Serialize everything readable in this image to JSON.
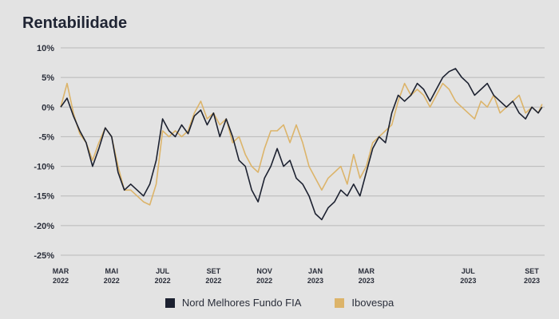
{
  "title": "Rentabilidade",
  "chart_data": {
    "type": "line",
    "title": "Rentabilidade",
    "ylim": [
      -25,
      10
    ],
    "y_ticks": [
      "10%",
      "5%",
      "0%",
      "-5%",
      "-10%",
      "-15%",
      "-20%",
      "-25%"
    ],
    "x_ticks": [
      {
        "month": "MAR",
        "year": "2022"
      },
      {
        "month": "MAI",
        "year": "2022"
      },
      {
        "month": "JUL",
        "year": "2022"
      },
      {
        "month": "SET",
        "year": "2022"
      },
      {
        "month": "NOV",
        "year": "2022"
      },
      {
        "month": "JAN",
        "year": "2023"
      },
      {
        "month": "MAR",
        "year": "2023"
      },
      {
        "month": "JUL",
        "year": "2023"
      },
      {
        "month": "SET",
        "year": "2023"
      }
    ],
    "x_tick_positions": [
      0,
      2,
      4,
      6,
      8,
      10,
      12,
      16,
      18.5
    ],
    "x_range": [
      0,
      19
    ],
    "grid": true,
    "legend_position": "bottom",
    "series": [
      {
        "name": "Nord Melhores Fundo FIA",
        "color": "#1c2130",
        "x": [
          0,
          0.25,
          0.5,
          0.75,
          1,
          1.25,
          1.5,
          1.75,
          2,
          2.25,
          2.5,
          2.75,
          3,
          3.25,
          3.5,
          3.75,
          4,
          4.25,
          4.5,
          4.75,
          5,
          5.25,
          5.5,
          5.75,
          6,
          6.25,
          6.5,
          6.75,
          7,
          7.25,
          7.5,
          7.75,
          8,
          8.25,
          8.5,
          8.75,
          9,
          9.25,
          9.5,
          9.75,
          10,
          10.25,
          10.5,
          10.75,
          11,
          11.25,
          11.5,
          11.75,
          12,
          12.25,
          12.5,
          12.75,
          13,
          13.25,
          13.5,
          13.75,
          14,
          14.25,
          14.5,
          14.75,
          15,
          15.25,
          15.5,
          15.75,
          16,
          16.25,
          16.5,
          16.75,
          17,
          17.25,
          17.5,
          17.75,
          18,
          18.25,
          18.5,
          18.75,
          18.9
        ],
        "values": [
          0,
          1.5,
          -1.5,
          -4,
          -6,
          -10,
          -7,
          -3.5,
          -5,
          -11,
          -14,
          -13,
          -14,
          -15,
          -13,
          -9,
          -2,
          -4,
          -5,
          -3,
          -4.5,
          -1.5,
          -0.5,
          -3,
          -1,
          -5,
          -2,
          -5,
          -9,
          -10,
          -14,
          -16,
          -12,
          -10,
          -7,
          -10,
          -9,
          -12,
          -13,
          -15,
          -18,
          -19,
          -17,
          -16,
          -14,
          -15,
          -13,
          -15,
          -11,
          -7,
          -5,
          -6,
          -1,
          2,
          1,
          2,
          4,
          3,
          1,
          3,
          5,
          6,
          6.5,
          5,
          4,
          2,
          3,
          4,
          2,
          1,
          0,
          1,
          -1,
          -2,
          0,
          -1,
          0
        ]
      },
      {
        "name": "Ibovespa",
        "color": "#dcb46a",
        "x": [
          0,
          0.25,
          0.5,
          0.75,
          1,
          1.25,
          1.5,
          1.75,
          2,
          2.25,
          2.5,
          2.75,
          3,
          3.25,
          3.5,
          3.75,
          4,
          4.25,
          4.5,
          4.75,
          5,
          5.25,
          5.5,
          5.75,
          6,
          6.25,
          6.5,
          6.75,
          7,
          7.25,
          7.5,
          7.75,
          8,
          8.25,
          8.5,
          8.75,
          9,
          9.25,
          9.5,
          9.75,
          10,
          10.25,
          10.5,
          10.75,
          11,
          11.25,
          11.5,
          11.75,
          12,
          12.25,
          12.5,
          12.75,
          13,
          13.25,
          13.5,
          13.75,
          14,
          14.25,
          14.5,
          14.75,
          15,
          15.25,
          15.5,
          15.75,
          16,
          16.25,
          16.5,
          16.75,
          17,
          17.25,
          17.5,
          17.75,
          18,
          18.25,
          18.5,
          18.75,
          18.9
        ],
        "values": [
          0,
          4,
          -1,
          -4.5,
          -6,
          -9,
          -6,
          -3.5,
          -5,
          -10,
          -14,
          -14,
          -15,
          -16,
          -16.5,
          -13,
          -4,
          -5,
          -4,
          -5,
          -4,
          -1,
          1,
          -2,
          -1,
          -3,
          -2,
          -6,
          -5,
          -8,
          -10,
          -11,
          -7,
          -4,
          -4,
          -3,
          -6,
          -3,
          -6,
          -10,
          -12,
          -14,
          -12,
          -11,
          -10,
          -13,
          -8,
          -12,
          -10,
          -6,
          -5,
          -4,
          -3,
          1,
          4,
          2,
          3,
          2,
          0,
          2,
          4,
          3,
          1,
          0,
          -1,
          -2,
          1,
          0,
          2,
          -1,
          0,
          1,
          2,
          -1,
          0,
          -1,
          0.5
        ]
      }
    ]
  }
}
